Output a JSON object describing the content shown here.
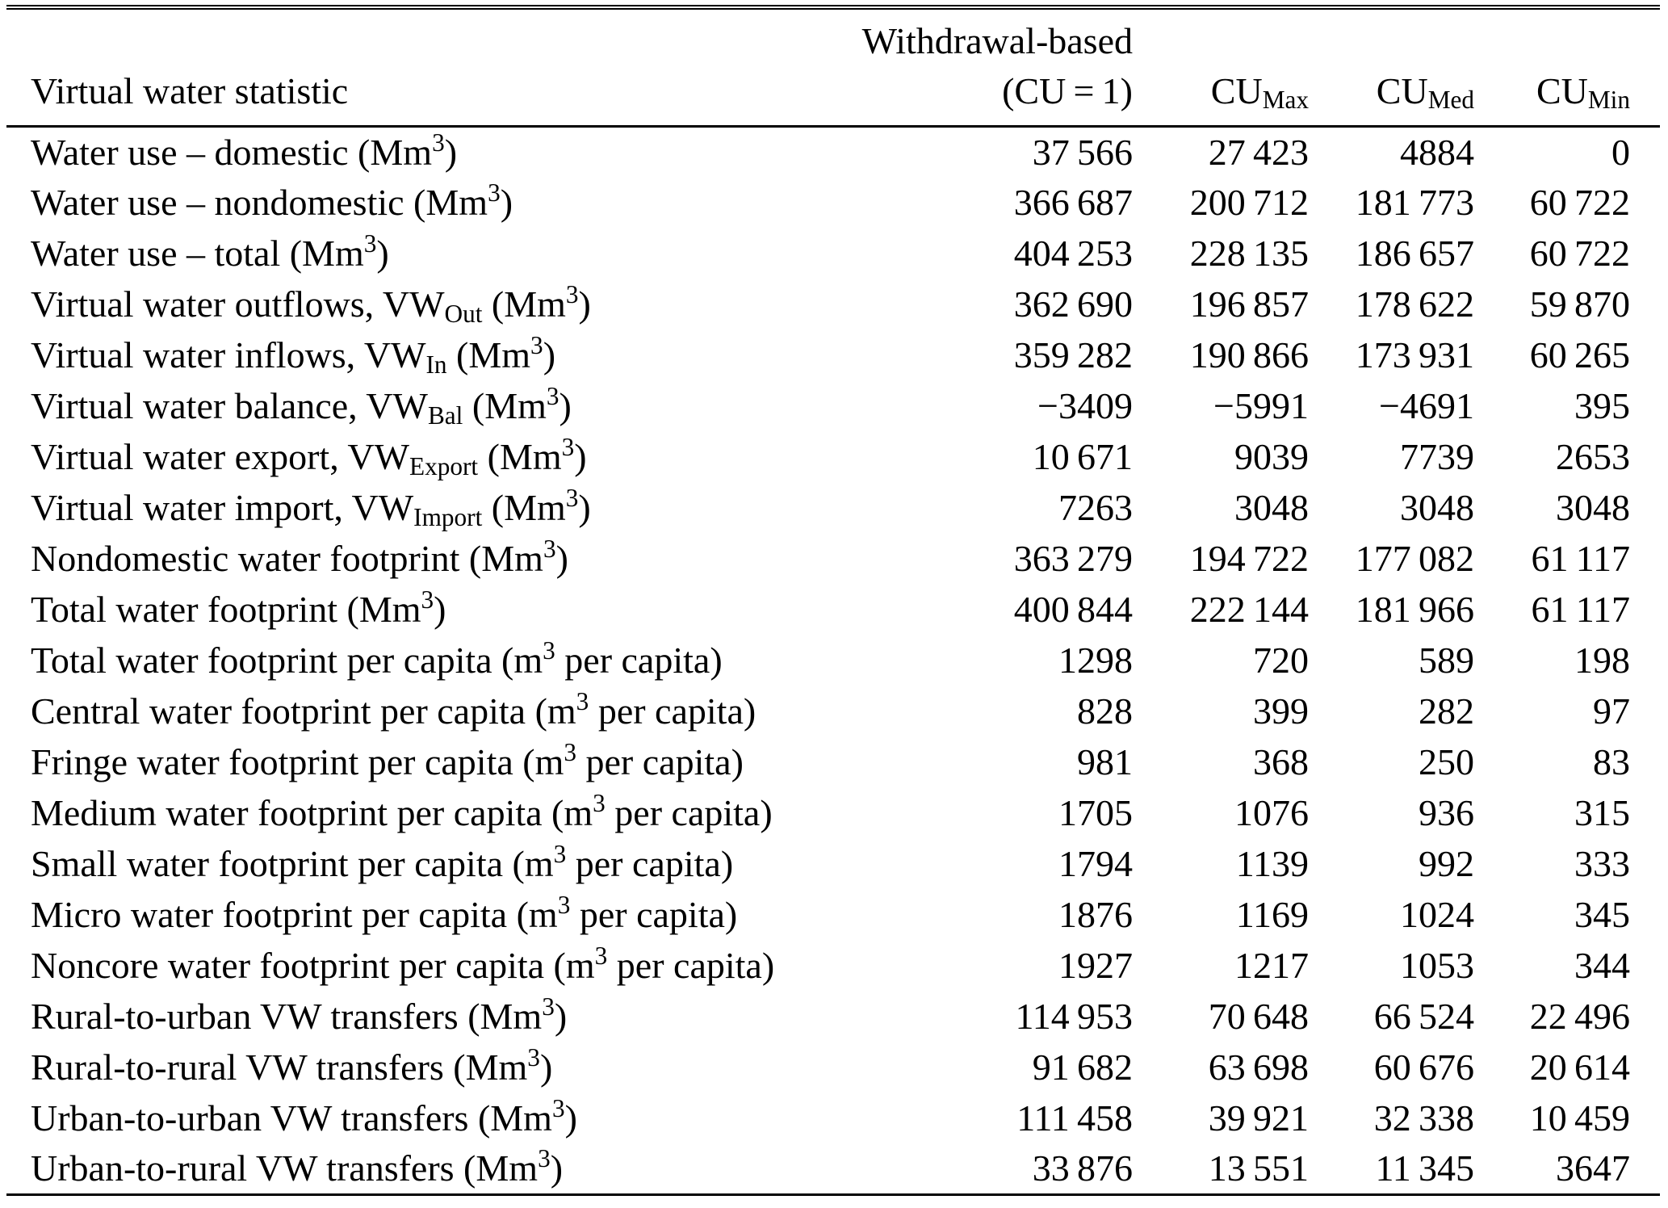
{
  "table": {
    "header": {
      "statistic": "Virtual water statistic",
      "withdrawal_line1": "Withdrawal-based",
      "withdrawal_line2": "(CU = 1)",
      "cu_max": "CU~Max~",
      "cu_med": "CU~Med~",
      "cu_min": "CU~Min~"
    },
    "rows": [
      {
        "label": "Water use – domestic (Mm^3^)",
        "values": [
          "37 566",
          "27 423",
          "4884",
          "0"
        ]
      },
      {
        "label": "Water use – nondomestic (Mm^3^)",
        "values": [
          "366 687",
          "200 712",
          "181 773",
          "60 722"
        ]
      },
      {
        "label": "Water use – total (Mm^3^)",
        "values": [
          "404 253",
          "228 135",
          "186 657",
          "60 722"
        ]
      },
      {
        "label": "Virtual water outflows, VW~Out~ (Mm^3^)",
        "values": [
          "362 690",
          "196 857",
          "178 622",
          "59 870"
        ]
      },
      {
        "label": "Virtual water inflows, VW~In~ (Mm^3^)",
        "values": [
          "359 282",
          "190 866",
          "173 931",
          "60 265"
        ]
      },
      {
        "label": "Virtual water balance, VW~Bal~ (Mm^3^)",
        "values": [
          "−3409",
          "−5991",
          "−4691",
          "395"
        ]
      },
      {
        "label": "Virtual water export, VW~Export~ (Mm^3^)",
        "values": [
          "10 671",
          "9039",
          "7739",
          "2653"
        ]
      },
      {
        "label": "Virtual water import, VW~Import~ (Mm^3^)",
        "values": [
          "7263",
          "3048",
          "3048",
          "3048"
        ]
      },
      {
        "label": "Nondomestic water footprint (Mm^3^)",
        "values": [
          "363 279",
          "194 722",
          "177 082",
          "61 117"
        ]
      },
      {
        "label": "Total water footprint (Mm^3^)",
        "values": [
          "400 844",
          "222 144",
          "181 966",
          "61 117"
        ]
      },
      {
        "label": "Total water footprint per capita (m^3^ per capita)",
        "values": [
          "1298",
          "720",
          "589",
          "198"
        ]
      },
      {
        "label": "Central water footprint per capita (m^3^ per capita)",
        "values": [
          "828",
          "399",
          "282",
          "97"
        ]
      },
      {
        "label": "Fringe water footprint per capita (m^3^ per capita)",
        "values": [
          "981",
          "368",
          "250",
          "83"
        ]
      },
      {
        "label": "Medium water footprint per capita (m^3^ per capita)",
        "values": [
          "1705",
          "1076",
          "936",
          "315"
        ]
      },
      {
        "label": "Small water footprint per capita (m^3^ per capita)",
        "values": [
          "1794",
          "1139",
          "992",
          "333"
        ]
      },
      {
        "label": "Micro water footprint per capita (m^3^ per capita)",
        "values": [
          "1876",
          "1169",
          "1024",
          "345"
        ]
      },
      {
        "label": "Noncore water footprint per capita (m^3^ per capita)",
        "values": [
          "1927",
          "1217",
          "1053",
          "344"
        ]
      },
      {
        "label": "Rural-to-urban VW transfers (Mm^3^)",
        "values": [
          "114 953",
          "70 648",
          "66 524",
          "22 496"
        ]
      },
      {
        "label": "Rural-to-rural VW transfers (Mm^3^)",
        "values": [
          "91 682",
          "63 698",
          "60 676",
          "20 614"
        ]
      },
      {
        "label": "Urban-to-urban VW transfers (Mm^3^)",
        "values": [
          "111 458",
          "39 921",
          "32 338",
          "10 459"
        ]
      },
      {
        "label": "Urban-to-rural VW transfers (Mm^3^)",
        "values": [
          "33 876",
          "13 551",
          "11 345",
          "3647"
        ]
      }
    ]
  }
}
